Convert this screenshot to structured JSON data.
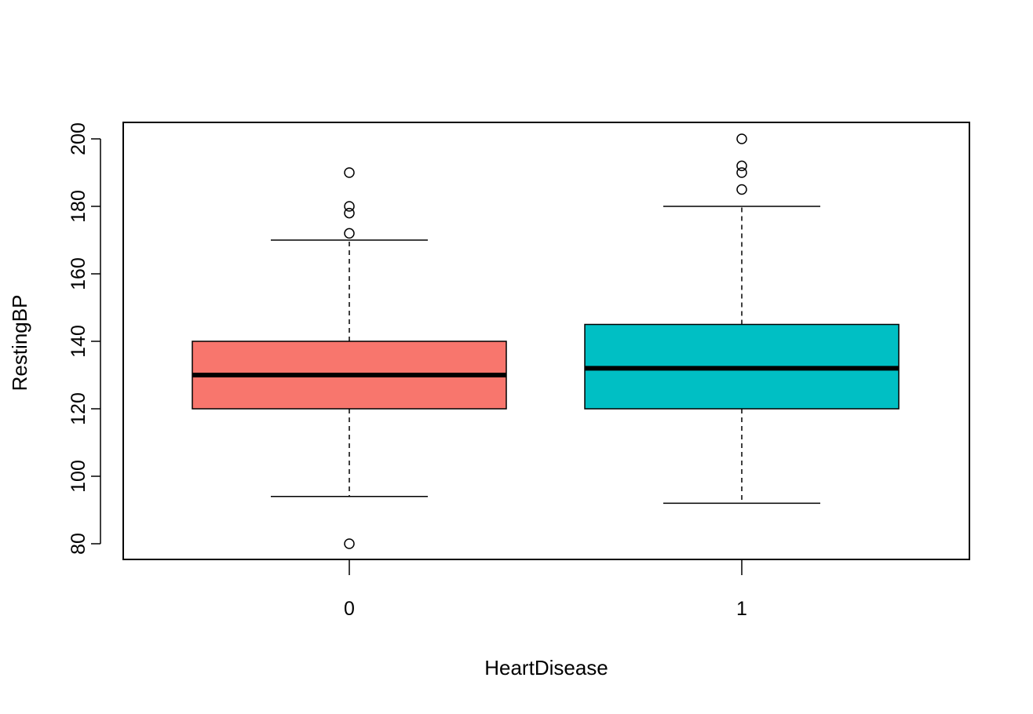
{
  "chart_data": {
    "type": "boxplot",
    "title": "",
    "xlabel": "HeartDisease",
    "ylabel": "RestingBP",
    "ylim": [
      75,
      205
    ],
    "y_ticks": [
      80,
      100,
      120,
      140,
      160,
      180,
      200
    ],
    "grid": false,
    "legend": "none",
    "categories": [
      "0",
      "1"
    ],
    "boxes": [
      {
        "category": "0",
        "color": "#F8766D",
        "whisker_low": 94,
        "q1": 120,
        "median": 130,
        "q3": 140,
        "whisker_high": 170,
        "outliers": [
          80,
          172,
          178,
          180,
          190
        ]
      },
      {
        "category": "1",
        "color": "#00BFC4",
        "whisker_low": 92,
        "q1": 120,
        "median": 132,
        "q3": 145,
        "whisker_high": 180,
        "outliers": [
          185,
          190,
          192,
          200
        ]
      }
    ]
  }
}
